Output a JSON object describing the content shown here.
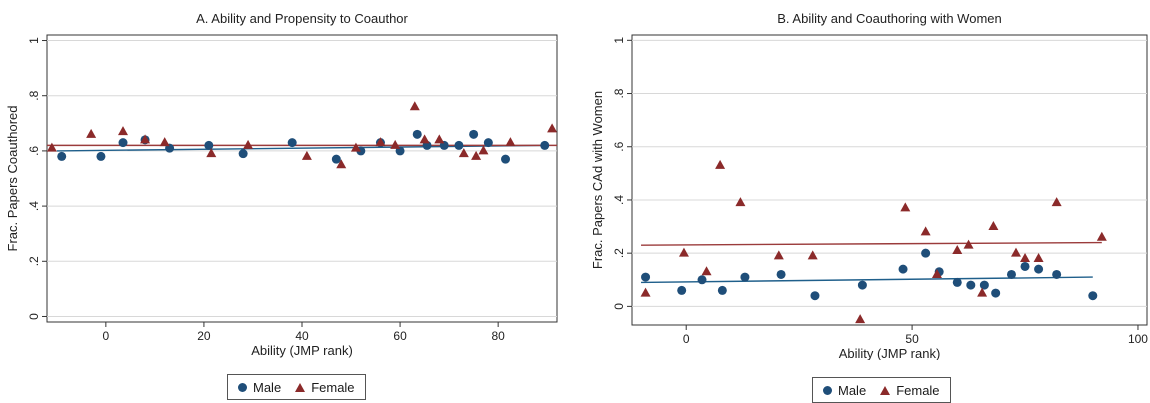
{
  "colors": {
    "male": "#1f4e79",
    "female": "#8b2a2a",
    "male_line": "#1f5f8b",
    "female_line": "#9b3b3b"
  },
  "chart_data": [
    {
      "type": "scatter",
      "title": "A. Ability and Propensity to Coauthor",
      "xlabel": "Ability (JMP rank)",
      "ylabel": "Frac. Papers Coauthored",
      "xlim": [
        -12,
        92
      ],
      "ylim": [
        -0.02,
        1.02
      ],
      "xticks": [
        0,
        20,
        40,
        60,
        80
      ],
      "yticks": [
        0,
        0.2,
        0.4,
        0.6,
        0.8,
        1
      ],
      "ytick_labels": [
        "0",
        ".2",
        ".4",
        ".6",
        ".8",
        "1"
      ],
      "legend_position": "bottom",
      "series": [
        {
          "name": "Male",
          "marker": "circle",
          "points": [
            [
              -9,
              0.58
            ],
            [
              -1,
              0.58
            ],
            [
              3.5,
              0.63
            ],
            [
              8,
              0.64
            ],
            [
              13,
              0.61
            ],
            [
              21,
              0.62
            ],
            [
              28,
              0.59
            ],
            [
              38,
              0.63
            ],
            [
              47,
              0.57
            ],
            [
              52,
              0.6
            ],
            [
              56,
              0.63
            ],
            [
              60,
              0.6
            ],
            [
              63.5,
              0.66
            ],
            [
              65.5,
              0.62
            ],
            [
              69,
              0.62
            ],
            [
              72,
              0.62
            ],
            [
              75,
              0.66
            ],
            [
              78,
              0.63
            ],
            [
              81.5,
              0.57
            ],
            [
              89.5,
              0.62
            ]
          ],
          "fit": [
            [
              -10,
              0.6
            ],
            [
              90,
              0.62
            ]
          ]
        },
        {
          "name": "Female",
          "marker": "triangle",
          "points": [
            [
              -11,
              0.61
            ],
            [
              -3,
              0.66
            ],
            [
              3.5,
              0.67
            ],
            [
              8,
              0.64
            ],
            [
              12,
              0.63
            ],
            [
              21.5,
              0.59
            ],
            [
              29,
              0.62
            ],
            [
              41,
              0.58
            ],
            [
              48,
              0.55
            ],
            [
              51,
              0.61
            ],
            [
              56,
              0.63
            ],
            [
              59,
              0.62
            ],
            [
              63,
              0.76
            ],
            [
              65,
              0.64
            ],
            [
              68,
              0.64
            ],
            [
              73,
              0.59
            ],
            [
              75.5,
              0.58
            ],
            [
              77,
              0.6
            ],
            [
              82.5,
              0.63
            ],
            [
              91,
              0.68
            ]
          ],
          "fit": [
            [
              -12,
              0.62
            ],
            [
              92,
              0.62
            ]
          ]
        }
      ]
    },
    {
      "type": "scatter",
      "title": "B. Ability and Coauthoring with Women",
      "xlabel": "Ability (JMP rank)",
      "ylabel": "Frac. Papers CAd with Women",
      "xlim": [
        -12,
        102
      ],
      "ylim": [
        -0.07,
        1.02
      ],
      "xticks": [
        0,
        50,
        100
      ],
      "yticks": [
        0,
        0.2,
        0.4,
        0.6,
        0.8,
        1
      ],
      "ytick_labels": [
        "0",
        ".2",
        ".4",
        ".6",
        ".8",
        "1"
      ],
      "legend_position": "bottom",
      "series": [
        {
          "name": "Male",
          "marker": "circle",
          "points": [
            [
              -9,
              0.11
            ],
            [
              -1,
              0.06
            ],
            [
              3.5,
              0.1
            ],
            [
              8,
              0.06
            ],
            [
              13,
              0.11
            ],
            [
              21,
              0.12
            ],
            [
              28.5,
              0.04
            ],
            [
              39,
              0.08
            ],
            [
              48,
              0.14
            ],
            [
              53,
              0.2
            ],
            [
              56,
              0.13
            ],
            [
              60,
              0.09
            ],
            [
              63,
              0.08
            ],
            [
              66,
              0.08
            ],
            [
              68.5,
              0.05
            ],
            [
              72,
              0.12
            ],
            [
              75,
              0.15
            ],
            [
              78,
              0.14
            ],
            [
              82,
              0.12
            ],
            [
              90,
              0.04
            ]
          ],
          "fit": [
            [
              -10,
              0.09
            ],
            [
              90,
              0.11
            ]
          ]
        },
        {
          "name": "Female",
          "marker": "triangle",
          "points": [
            [
              -9,
              0.05
            ],
            [
              -0.5,
              0.2
            ],
            [
              4.5,
              0.13
            ],
            [
              7.5,
              0.53
            ],
            [
              12,
              0.39
            ],
            [
              20.5,
              0.19
            ],
            [
              28,
              0.19
            ],
            [
              38.5,
              -0.05
            ],
            [
              48.5,
              0.37
            ],
            [
              53,
              0.28
            ],
            [
              55.5,
              0.12
            ],
            [
              60,
              0.21
            ],
            [
              62.5,
              0.23
            ],
            [
              65.5,
              0.05
            ],
            [
              68,
              0.3
            ],
            [
              73,
              0.2
            ],
            [
              75,
              0.18
            ],
            [
              78,
              0.18
            ],
            [
              82,
              0.39
            ],
            [
              92,
              0.26
            ]
          ],
          "fit": [
            [
              -10,
              0.23
            ],
            [
              92,
              0.24
            ]
          ]
        }
      ]
    }
  ]
}
